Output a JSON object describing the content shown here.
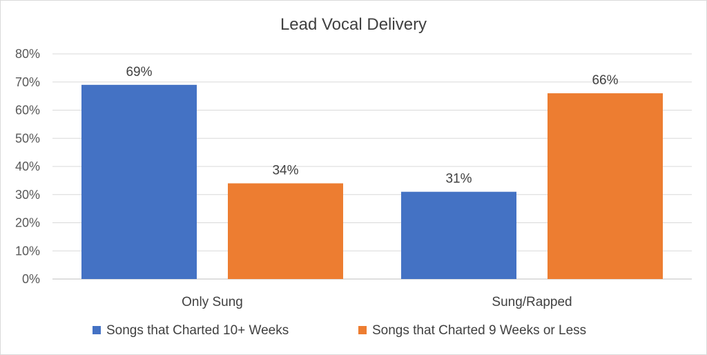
{
  "chart_data": {
    "type": "bar",
    "title": "Lead Vocal Delivery",
    "categories": [
      "Only Sung",
      "Sung/Rapped"
    ],
    "series": [
      {
        "name": "Songs that Charted 10+ Weeks",
        "values": [
          69,
          31
        ],
        "color": "#4472c4"
      },
      {
        "name": "Songs that Charted 9 Weeks or Less",
        "values": [
          34,
          66
        ],
        "color": "#ed7d31"
      }
    ],
    "ylim": [
      0,
      80
    ],
    "yticks": [
      0,
      10,
      20,
      30,
      40,
      50,
      60,
      70,
      80
    ],
    "ytick_format": "percent",
    "data_labels": true,
    "grid": true,
    "legend": "bottom"
  }
}
